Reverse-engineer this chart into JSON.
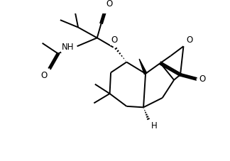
{
  "background_color": "#ffffff",
  "line_color": "#000000",
  "bond_width": 1.4,
  "label_fontsize": 8.5,
  "fig_width": 3.24,
  "fig_height": 2.27,
  "dpi": 100,
  "xlim": [
    0,
    10
  ],
  "ylim": [
    0,
    7
  ]
}
